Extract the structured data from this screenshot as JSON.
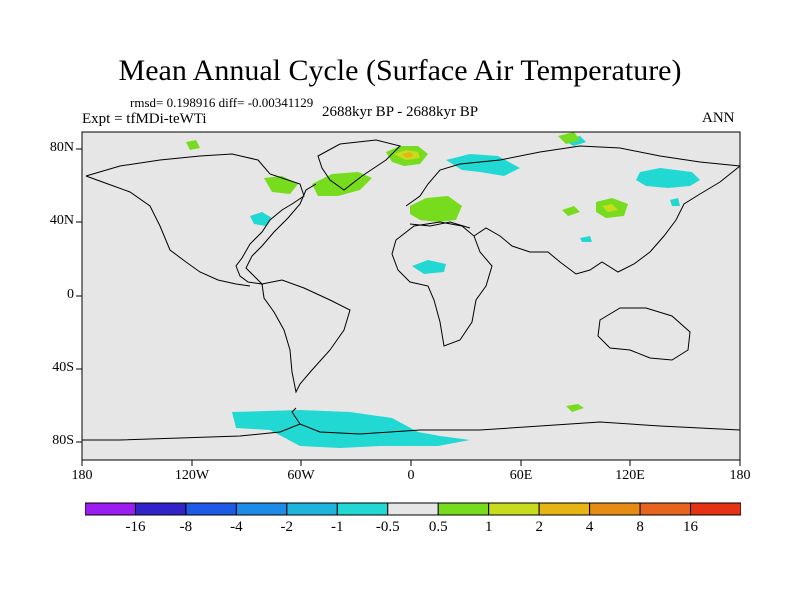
{
  "header": {
    "title": "Mean Annual Cycle (Surface Air Temperature)",
    "stats": "rmsd= 0.198916  diff= -0.00341129",
    "experiment": "Expt = tfMDi-teWTi",
    "period": "2688kyr BP - 2688kyr BP",
    "season": "ANN"
  },
  "map": {
    "background_color": "#e6e6e6",
    "lat_labels": [
      "80N",
      "40N",
      "0",
      "40S",
      "80S"
    ],
    "lon_labels": [
      "180",
      "120W",
      "60W",
      "0",
      "60E",
      "120E",
      "180"
    ]
  },
  "colorbar": {
    "colors": [
      "#9b1ef0",
      "#3223c8",
      "#1e5ae6",
      "#1e8ce6",
      "#1eb4dc",
      "#22d8d2",
      "#e6e6e6",
      "#78dc1e",
      "#c8dc1e",
      "#e6b414",
      "#e68c14",
      "#e6641e",
      "#e63214"
    ],
    "labels": [
      "-16",
      "-8",
      "-4",
      "-2",
      "-1",
      "-0.5",
      "0.5",
      "1",
      "2",
      "4",
      "8",
      "16"
    ]
  }
}
